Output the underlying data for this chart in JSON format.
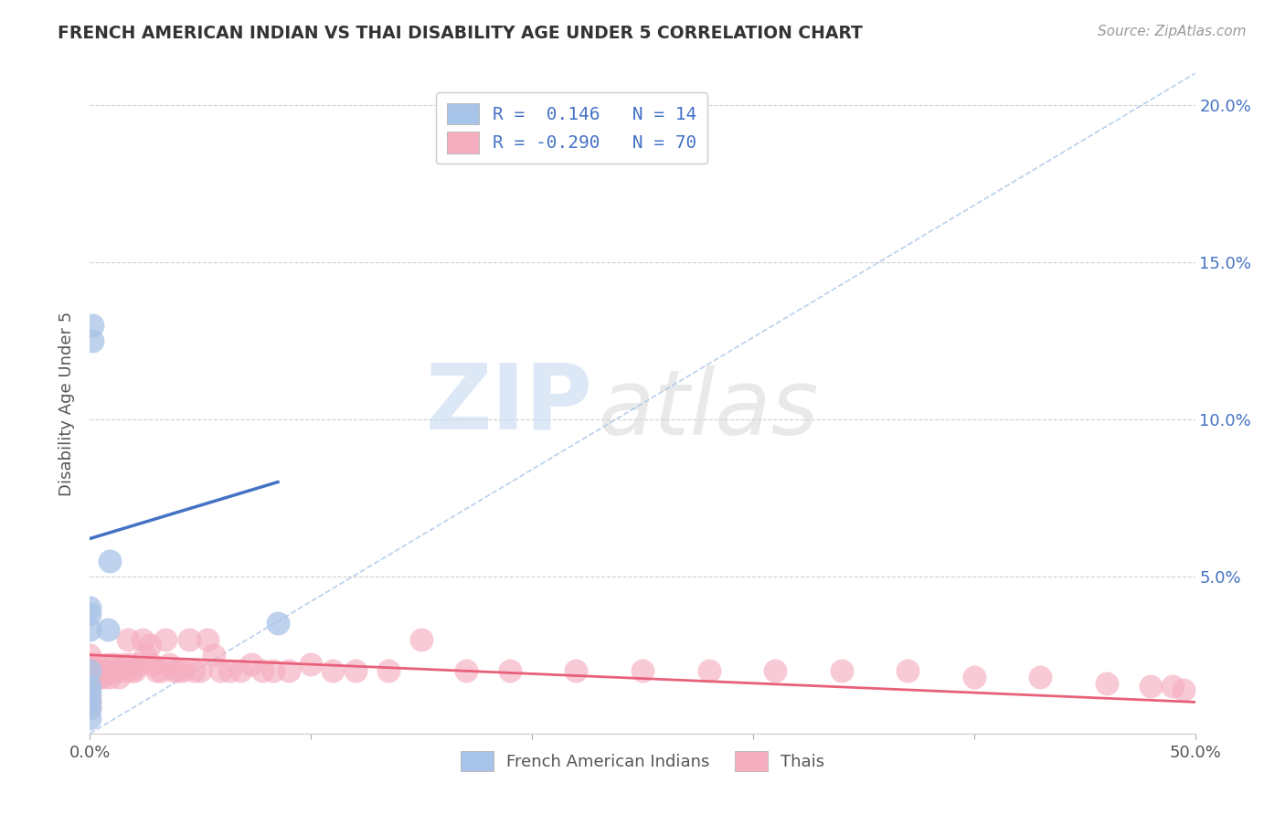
{
  "title": "FRENCH AMERICAN INDIAN VS THAI DISABILITY AGE UNDER 5 CORRELATION CHART",
  "source": "Source: ZipAtlas.com",
  "ylabel": "Disability Age Under 5",
  "xlim": [
    0.0,
    0.5
  ],
  "ylim": [
    0.0,
    0.21
  ],
  "xticks": [
    0.0,
    0.1,
    0.2,
    0.3,
    0.4,
    0.5
  ],
  "yticks": [
    0.0,
    0.05,
    0.1,
    0.15,
    0.2
  ],
  "xticklabels": [
    "0.0%",
    "",
    "",
    "",
    "",
    "50.0%"
  ],
  "yticklabels_right": [
    "",
    "5.0%",
    "10.0%",
    "15.0%",
    "20.0%"
  ],
  "blue_color": "#a8c4e8",
  "pink_color": "#f5aec0",
  "blue_line_color": "#4472c4",
  "pink_line_color": "#e8607a",
  "diag_color": "#a8c4e8",
  "R_blue": 0.146,
  "N_blue": 14,
  "R_pink": -0.29,
  "N_pink": 70,
  "blue_scatter_x": [
    0.0,
    0.0,
    0.0,
    0.0,
    0.0,
    0.0,
    0.0,
    0.0,
    0.0,
    0.001,
    0.001,
    0.008,
    0.009,
    0.085
  ],
  "blue_scatter_y": [
    0.005,
    0.008,
    0.01,
    0.013,
    0.015,
    0.02,
    0.033,
    0.038,
    0.04,
    0.125,
    0.13,
    0.033,
    0.055,
    0.035
  ],
  "pink_scatter_x": [
    0.0,
    0.0,
    0.0,
    0.0,
    0.0,
    0.0,
    0.0,
    0.0,
    0.001,
    0.002,
    0.003,
    0.004,
    0.005,
    0.006,
    0.007,
    0.008,
    0.009,
    0.01,
    0.011,
    0.012,
    0.013,
    0.015,
    0.016,
    0.017,
    0.018,
    0.019,
    0.02,
    0.022,
    0.024,
    0.025,
    0.027,
    0.028,
    0.03,
    0.032,
    0.034,
    0.036,
    0.038,
    0.04,
    0.042,
    0.045,
    0.047,
    0.05,
    0.053,
    0.056,
    0.059,
    0.063,
    0.068,
    0.073,
    0.078,
    0.083,
    0.09,
    0.1,
    0.11,
    0.12,
    0.135,
    0.15,
    0.17,
    0.19,
    0.22,
    0.25,
    0.28,
    0.31,
    0.34,
    0.37,
    0.4,
    0.43,
    0.46,
    0.48,
    0.49,
    0.495
  ],
  "pink_scatter_y": [
    0.008,
    0.01,
    0.012,
    0.015,
    0.018,
    0.02,
    0.022,
    0.025,
    0.02,
    0.018,
    0.022,
    0.018,
    0.02,
    0.018,
    0.02,
    0.022,
    0.018,
    0.02,
    0.022,
    0.02,
    0.018,
    0.022,
    0.02,
    0.03,
    0.022,
    0.02,
    0.02,
    0.022,
    0.03,
    0.025,
    0.028,
    0.022,
    0.02,
    0.02,
    0.03,
    0.022,
    0.02,
    0.02,
    0.02,
    0.03,
    0.02,
    0.02,
    0.03,
    0.025,
    0.02,
    0.02,
    0.02,
    0.022,
    0.02,
    0.02,
    0.02,
    0.022,
    0.02,
    0.02,
    0.02,
    0.03,
    0.02,
    0.02,
    0.02,
    0.02,
    0.02,
    0.02,
    0.02,
    0.02,
    0.018,
    0.018,
    0.016,
    0.015,
    0.015,
    0.014
  ],
  "blue_line_x": [
    0.0,
    0.085
  ],
  "blue_line_y": [
    0.062,
    0.08
  ],
  "pink_line_x": [
    0.0,
    0.5
  ],
  "pink_line_y": [
    0.025,
    0.01
  ],
  "watermark_zip": "ZIP",
  "watermark_atlas": "atlas",
  "legend_r_blue": "R =  0.146",
  "legend_n_blue": "N = 14",
  "legend_r_pink": "R = -0.290",
  "legend_n_pink": "N = 70"
}
